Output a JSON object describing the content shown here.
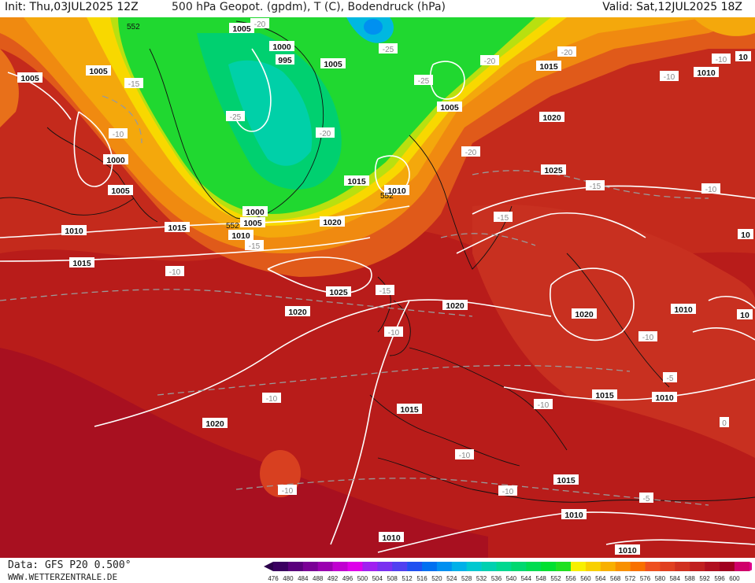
{
  "header": {
    "init": "Init: Thu,03JUL2025 12Z",
    "title": "500 hPa Geopot. (gpdm), T (C), Bodendruck (hPa)",
    "valid": "Valid: Sat,12JUL2025 18Z"
  },
  "footer": {
    "data": "Data: GFS P20 0.500°",
    "site": "WWW.WETTERZENTRALE.DE"
  },
  "legend": {
    "values": [
      "476",
      "480",
      "484",
      "488",
      "492",
      "496",
      "500",
      "504",
      "508",
      "512",
      "516",
      "520",
      "524",
      "528",
      "532",
      "536",
      "540",
      "544",
      "548",
      "552",
      "556",
      "560",
      "564",
      "568",
      "572",
      "576",
      "580",
      "584",
      "588",
      "592",
      "596",
      "600"
    ],
    "colors": [
      "#3a0060",
      "#5a007c",
      "#7a0096",
      "#9a00b0",
      "#c000d0",
      "#de00ea",
      "#a020f0",
      "#7a30f0",
      "#5040f0",
      "#2050f0",
      "#0070f0",
      "#0090f0",
      "#00b0e8",
      "#00c8d0",
      "#00d0b0",
      "#00d890",
      "#00d870",
      "#00dc50",
      "#00e030",
      "#20e020",
      "#f8f000",
      "#f8d000",
      "#f8b000",
      "#f89000",
      "#f87000",
      "#ee5020",
      "#e04020",
      "#d03020",
      "#c02020",
      "#b01020",
      "#a00020",
      "#d0006a"
    ]
  },
  "pressure_labels": [
    {
      "text": "1005"
    },
    {
      "text": "1000"
    },
    {
      "text": "995"
    },
    {
      "text": "1005"
    },
    {
      "text": "1005"
    },
    {
      "text": "1005"
    },
    {
      "text": "1005"
    },
    {
      "text": "1000"
    },
    {
      "text": "1005"
    },
    {
      "text": "1010"
    },
    {
      "text": "1015"
    },
    {
      "text": "1015"
    },
    {
      "text": "1000"
    },
    {
      "text": "1005"
    },
    {
      "text": "1010"
    },
    {
      "text": "1015"
    },
    {
      "text": "1010"
    },
    {
      "text": "1020"
    },
    {
      "text": "1015"
    },
    {
      "text": "1020"
    },
    {
      "text": "1025"
    },
    {
      "text": "1025"
    },
    {
      "text": "1020"
    },
    {
      "text": "1020"
    },
    {
      "text": "1020"
    },
    {
      "text": "1010"
    },
    {
      "text": "1015"
    },
    {
      "text": "1010"
    },
    {
      "text": "1015"
    },
    {
      "text": "1020"
    },
    {
      "text": "1015"
    },
    {
      "text": "1010"
    },
    {
      "text": "1010"
    },
    {
      "text": "1010"
    },
    {
      "text": "1010"
    },
    {
      "text": "10"
    },
    {
      "text": "10"
    },
    {
      "text": "10"
    }
  ],
  "temperature_labels": [
    {
      "text": "-20"
    },
    {
      "text": "-25"
    },
    {
      "text": "-25"
    },
    {
      "text": "-20"
    },
    {
      "text": "-20"
    },
    {
      "text": "-20"
    },
    {
      "text": "-15"
    },
    {
      "text": "-10"
    },
    {
      "text": "-25"
    },
    {
      "text": "-20"
    },
    {
      "text": "-15"
    },
    {
      "text": "-15"
    },
    {
      "text": "-15"
    },
    {
      "text": "-10"
    },
    {
      "text": "-10"
    },
    {
      "text": "-15"
    },
    {
      "text": "-10"
    },
    {
      "text": "-10"
    },
    {
      "text": "-10"
    },
    {
      "text": "-10"
    },
    {
      "text": "-10"
    },
    {
      "text": "-10"
    },
    {
      "text": "-10"
    },
    {
      "text": "-5"
    },
    {
      "text": "-10"
    },
    {
      "text": "-10"
    },
    {
      "text": "-5"
    },
    {
      "text": "0"
    }
  ],
  "geopotential_labels": [
    {
      "text": "552"
    },
    {
      "text": "552"
    },
    {
      "text": "552"
    }
  ]
}
